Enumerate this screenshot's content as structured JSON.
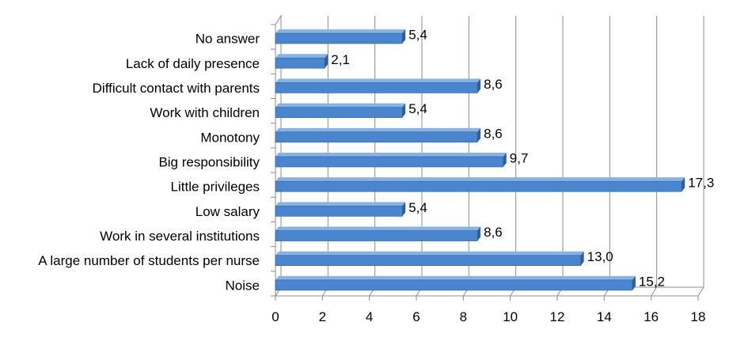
{
  "chart_data": {
    "type": "bar",
    "orientation": "horizontal",
    "categories": [
      "No answer",
      "Lack of daily presence",
      "Difficult contact with parents",
      "Work with children",
      "Monotony",
      "Big responsibility",
      "Little privileges",
      "Low salary",
      "Work in several institutions",
      "A large number of students per nurse",
      "Noise"
    ],
    "values": [
      5.4,
      2.1,
      8.6,
      5.4,
      8.6,
      9.7,
      17.3,
      5.4,
      8.6,
      13.0,
      15.2
    ],
    "value_labels": [
      "5,4",
      "2,1",
      "8,6",
      "5,4",
      "8,6",
      "9,7",
      "17,3",
      "5,4",
      "8,6",
      "13,0",
      "15,2"
    ],
    "xlim": [
      0,
      18
    ],
    "x_ticks": [
      "0",
      "2",
      "4",
      "6",
      "8",
      "10",
      "12",
      "14",
      "16",
      "18"
    ],
    "grid": "vertical",
    "style": "3d",
    "colors": {
      "bar": "#4a86cf",
      "bar_dark": "#2e5f99",
      "bar_light": "#86b2e6",
      "grid": "#8c8c8c",
      "wall": "#ffffff"
    }
  }
}
